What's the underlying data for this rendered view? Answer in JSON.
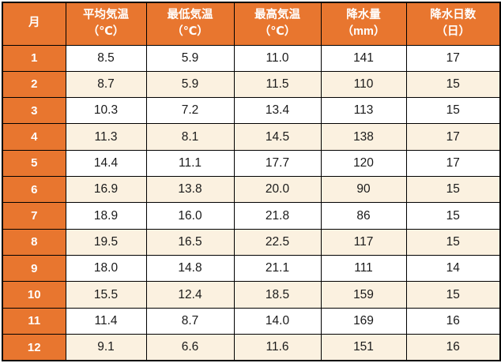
{
  "colors": {
    "header_bg": "#E8762F",
    "header_text": "#FFFFFF",
    "row_bg": "#FFFFFF",
    "row_alt_bg": "#FBF1E0",
    "border": "#000000",
    "body_text": "#1A1A1A"
  },
  "chart_data": {
    "type": "table",
    "columns": [
      "月",
      "平均気温\n（℃）",
      "最低気温\n（℃）",
      "最高気温\n（℃）",
      "降水量\n（mm）",
      "降水日数\n（日）"
    ],
    "column_keys": [
      "month",
      "avg_temp_c",
      "min_temp_c",
      "max_temp_c",
      "precipitation_mm",
      "precipitation_days"
    ],
    "rows": [
      [
        "1",
        "8.5",
        "5.9",
        "11.0",
        "141",
        "17"
      ],
      [
        "2",
        "8.7",
        "5.9",
        "11.5",
        "110",
        "15"
      ],
      [
        "3",
        "10.3",
        "7.2",
        "13.4",
        "113",
        "15"
      ],
      [
        "4",
        "11.3",
        "8.1",
        "14.5",
        "138",
        "17"
      ],
      [
        "5",
        "14.4",
        "11.1",
        "17.7",
        "120",
        "17"
      ],
      [
        "6",
        "16.9",
        "13.8",
        "20.0",
        "90",
        "15"
      ],
      [
        "7",
        "18.9",
        "16.0",
        "21.8",
        "86",
        "15"
      ],
      [
        "8",
        "19.5",
        "16.5",
        "22.5",
        "117",
        "15"
      ],
      [
        "9",
        "18.0",
        "14.8",
        "21.1",
        "111",
        "14"
      ],
      [
        "10",
        "15.5",
        "12.4",
        "18.5",
        "159",
        "15"
      ],
      [
        "11",
        "11.4",
        "8.7",
        "14.0",
        "169",
        "16"
      ],
      [
        "12",
        "9.1",
        "6.6",
        "11.6",
        "151",
        "16"
      ]
    ]
  }
}
